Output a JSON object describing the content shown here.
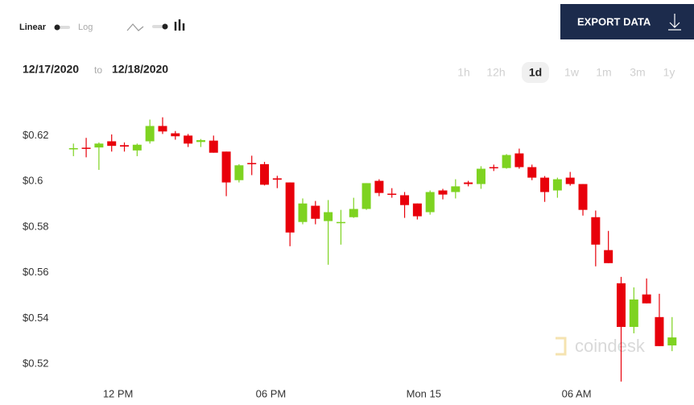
{
  "toolbar": {
    "linear": "Linear",
    "log": "Log"
  },
  "export_button": "EXPORT DATA",
  "date_range": {
    "from": "12/17/2020",
    "to_word": "to",
    "to": "12/18/2020"
  },
  "ranges": [
    "1h",
    "12h",
    "1d",
    "1w",
    "1m",
    "3m",
    "1y"
  ],
  "active_range": 2,
  "watermark": "coindesk",
  "chart_data": {
    "type": "candlestick",
    "up_color": "#7ed321",
    "down_color": "#e8000b",
    "x": [
      10.25,
      10.75,
      11.25,
      11.75,
      12.25,
      12.75,
      13.25,
      13.75,
      14.25,
      14.75,
      15.25,
      15.75,
      16.25,
      16.75,
      17.25,
      17.75,
      18.25,
      18.75,
      19.25,
      19.75,
      20.25,
      20.75,
      21.25,
      21.75,
      22.25,
      22.75,
      23.25,
      23.75,
      24.25,
      24.75,
      25.25,
      25.75,
      26.25,
      26.75,
      27.25,
      27.75,
      28.25,
      28.75,
      29.25,
      29.75,
      30.25,
      30.75,
      31.25,
      31.75,
      32.25,
      32.75,
      33.25,
      33.75
    ],
    "open": [
      0.6142,
      0.6147,
      0.6148,
      0.6175,
      0.6158,
      0.6135,
      0.6175,
      0.6242,
      0.621,
      0.62,
      0.6172,
      0.6178,
      0.613,
      0.6005,
      0.608,
      0.6075,
      0.6013,
      0.5995,
      0.5822,
      0.5893,
      0.5826,
      0.5818,
      0.5843,
      0.5879,
      0.6002,
      0.5946,
      0.5939,
      0.5903,
      0.5865,
      0.596,
      0.5953,
      0.5995,
      0.5988,
      0.6062,
      0.6058,
      0.6122,
      0.6062,
      0.6016,
      0.596,
      0.6016,
      0.5988,
      0.5843,
      0.5699,
      0.5554,
      0.5363,
      0.5505,
      0.5406,
      0.5282
    ],
    "high": [
      0.6165,
      0.619,
      0.617,
      0.6205,
      0.617,
      0.6165,
      0.627,
      0.628,
      0.622,
      0.6207,
      0.6185,
      0.62,
      0.613,
      0.6075,
      0.6112,
      0.6085,
      0.6024,
      0.5995,
      0.5925,
      0.5914,
      0.5918,
      0.5875,
      0.5928,
      0.5992,
      0.6009,
      0.597,
      0.5953,
      0.5903,
      0.596,
      0.5967,
      0.6009,
      0.6002,
      0.6066,
      0.6073,
      0.6119,
      0.6143,
      0.6073,
      0.6023,
      0.6016,
      0.6041,
      0.5988,
      0.5872,
      0.5783,
      0.5582,
      0.5536,
      0.5575,
      0.5508,
      0.5406
    ],
    "low": [
      0.611,
      0.6105,
      0.605,
      0.613,
      0.613,
      0.611,
      0.6165,
      0.6207,
      0.6182,
      0.615,
      0.615,
      0.6125,
      0.5935,
      0.5995,
      0.6027,
      0.5982,
      0.597,
      0.5716,
      0.5812,
      0.5812,
      0.5635,
      0.5723,
      0.584,
      0.5875,
      0.5935,
      0.5928,
      0.584,
      0.5833,
      0.5854,
      0.5921,
      0.5925,
      0.5978,
      0.5967,
      0.6045,
      0.6055,
      0.6055,
      0.6005,
      0.591,
      0.5928,
      0.5981,
      0.585,
      0.5628,
      0.5642,
      0.5124,
      0.5335,
      0.5466,
      0.5279,
      0.5257
    ],
    "close": [
      0.6145,
      0.6145,
      0.6165,
      0.6155,
      0.6152,
      0.616,
      0.6242,
      0.6218,
      0.6197,
      0.6165,
      0.618,
      0.6125,
      0.5995,
      0.607,
      0.6075,
      0.5985,
      0.6007,
      0.5776,
      0.5903,
      0.5836,
      0.5865,
      0.5822,
      0.5879,
      0.5992,
      0.5949,
      0.5942,
      0.5896,
      0.5847,
      0.5953,
      0.5942,
      0.5978,
      0.5988,
      0.6055,
      0.6058,
      0.6115,
      0.6062,
      0.6016,
      0.5953,
      0.6009,
      0.5988,
      0.5875,
      0.5723,
      0.5642,
      0.5363,
      0.5483,
      0.5466,
      0.5279,
      0.5317
    ],
    "xlim": [
      9.8,
      34.2
    ],
    "xticks": [
      {
        "value": 12,
        "label": "12 PM"
      },
      {
        "value": 18,
        "label": "06 PM"
      },
      {
        "value": 24,
        "label": "Mon 15"
      },
      {
        "value": 30,
        "label": "06 AM"
      }
    ],
    "ylim": [
      0.512,
      0.63
    ],
    "yticks": [
      {
        "value": 0.52,
        "label": "$0.52"
      },
      {
        "value": 0.54,
        "label": "$0.54"
      },
      {
        "value": 0.56,
        "label": "$0.56"
      },
      {
        "value": 0.58,
        "label": "$0.58"
      },
      {
        "value": 0.6,
        "label": "$0.6"
      },
      {
        "value": 0.62,
        "label": "$0.62"
      }
    ],
    "grid": false
  }
}
